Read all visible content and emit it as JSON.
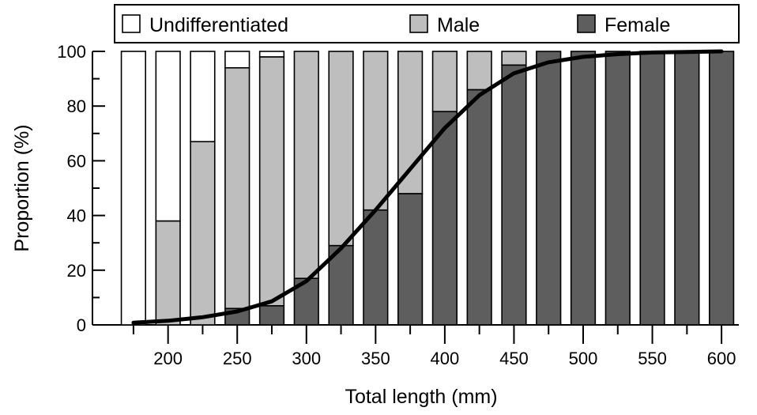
{
  "chart_data": {
    "type": "bar",
    "stacked": true,
    "percent_stacked": true,
    "xlabel": "Total length (mm)",
    "ylabel": "Proportion (%)",
    "xlim": [
      162.5,
      612.5
    ],
    "ylim": [
      0,
      100
    ],
    "x_ticks": [
      200,
      250,
      300,
      350,
      400,
      450,
      500,
      550,
      600
    ],
    "y_ticks": [
      0,
      20,
      40,
      60,
      80,
      100
    ],
    "bar_width": 17.5,
    "x": [
      175,
      200,
      225,
      250,
      275,
      300,
      325,
      350,
      375,
      400,
      425,
      450,
      475,
      500,
      525,
      550,
      575,
      600
    ],
    "series": [
      {
        "name": "Female",
        "color": "#5e5e5e",
        "values": [
          0,
          0,
          0,
          6,
          7,
          17,
          29,
          42,
          48,
          78,
          86,
          95,
          100,
          100,
          100,
          100,
          100,
          100
        ]
      },
      {
        "name": "Male",
        "color": "#bebebe",
        "values": [
          0,
          38,
          67,
          88,
          91,
          83,
          71,
          58,
          52,
          22,
          14,
          5,
          0,
          0,
          0,
          0,
          0,
          0
        ]
      },
      {
        "name": "Undifferentiated",
        "color": "#ffffff",
        "values": [
          100,
          62,
          33,
          6,
          2,
          0,
          0,
          0,
          0,
          0,
          0,
          0,
          0,
          0,
          0,
          0,
          0,
          0
        ]
      }
    ],
    "fitted_curve": {
      "type": "logistic",
      "x": [
        175,
        200,
        225,
        250,
        275,
        300,
        325,
        350,
        375,
        400,
        425,
        450,
        475,
        500,
        525,
        550,
        575,
        600
      ],
      "y": [
        0.8,
        1.5,
        2.8,
        4.9,
        8.6,
        16,
        28,
        42,
        57,
        72,
        84,
        92,
        96,
        98,
        99,
        99.6,
        99.8,
        100
      ]
    },
    "legend": {
      "position": "top",
      "entries": [
        "Undifferentiated",
        "Male",
        "Female"
      ]
    },
    "grid": false
  }
}
